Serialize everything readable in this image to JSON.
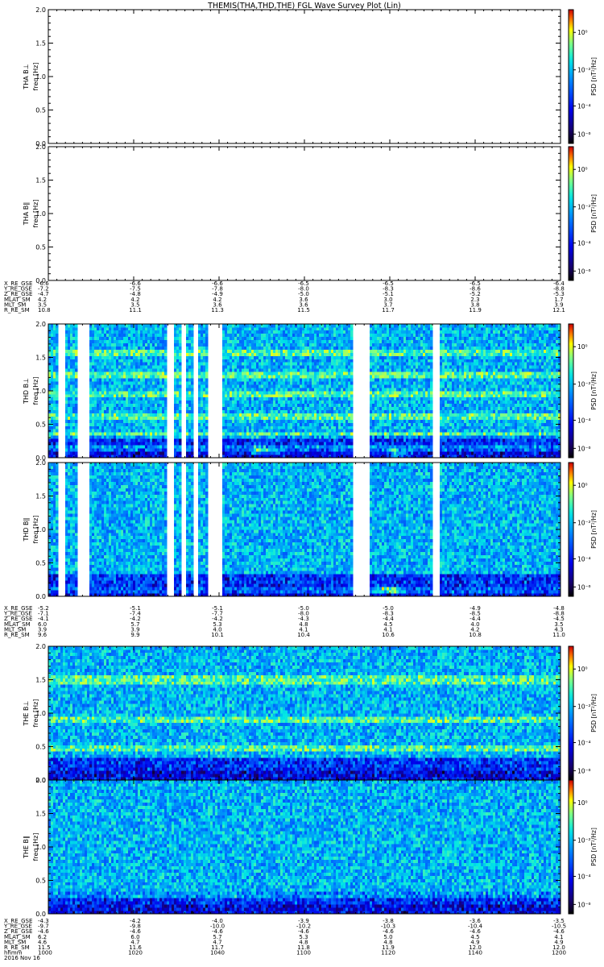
{
  "chart_data": {
    "type": "heatmap",
    "title": "THEMIS(THA,THD,THE) FGL Wave Survey Plot (Lin)",
    "panels": [
      {
        "probe": "tha",
        "ylabel": "THA B⊥",
        "unit": "freq [Hz]",
        "ylim": [
          0,
          2.0
        ],
        "yticks": [
          "0.0",
          "0.5",
          "1.0",
          "1.5",
          "2.0"
        ],
        "colorbar": {
          "label": "PSD [nT²/Hz]",
          "ticks": [
            "10⁰",
            "10⁻²",
            "10⁻⁴",
            "10⁻⁶"
          ]
        },
        "has_data": false
      },
      {
        "probe": "tha",
        "ylabel": "THA B∥",
        "unit": "freq [Hz]",
        "ylim": [
          0,
          2.0
        ],
        "yticks": [
          "0.0",
          "0.5",
          "1.0",
          "1.5",
          "2.0"
        ],
        "colorbar": {
          "label": "PSD [nT²/Hz]",
          "ticks": [
            "10⁰",
            "10⁻²",
            "10⁻⁴",
            "10⁻⁶"
          ]
        },
        "has_data": false
      },
      {
        "probe": "thd",
        "ylabel": "THD B⊥",
        "unit": "freq [Hz]",
        "ylim": [
          0,
          2.0
        ],
        "yticks": [
          "0.0",
          "0.5",
          "1.0",
          "1.5",
          "2.0"
        ],
        "colorbar": {
          "label": "PSD [nT²/Hz]",
          "ticks": [
            "10⁰",
            "10⁻²",
            "10⁻⁴",
            "10⁻⁶"
          ]
        },
        "has_data": true,
        "bands": [
          0.15,
          0.32,
          0.62,
          0.95,
          1.25,
          1.55
        ],
        "hot_spots": [
          {
            "x": 0.42,
            "y": 0.1
          },
          {
            "x": 0.68,
            "y": 0.08
          }
        ],
        "gaps": [
          [
            0.02,
            0.035
          ],
          [
            0.058,
            0.078
          ],
          [
            0.233,
            0.245
          ],
          [
            0.258,
            0.27
          ],
          [
            0.283,
            0.293
          ],
          [
            0.31,
            0.338
          ],
          [
            0.595,
            0.625
          ],
          [
            0.75,
            0.762
          ]
        ]
      },
      {
        "probe": "thd",
        "ylabel": "THD B∥",
        "unit": "freq [Hz]",
        "ylim": [
          0,
          2.0
        ],
        "yticks": [
          "0.0",
          "0.5",
          "1.0",
          "1.5",
          "2.0"
        ],
        "colorbar": {
          "label": "PSD [nT²/Hz]",
          "ticks": [
            "10⁰",
            "10⁻²",
            "10⁻⁴",
            "10⁻⁶"
          ]
        },
        "has_data": true,
        "bands": [
          0.1
        ],
        "hot_spots": [
          {
            "x": 0.66,
            "y": 0.1
          }
        ],
        "gaps": [
          [
            0.02,
            0.035
          ],
          [
            0.058,
            0.078
          ],
          [
            0.233,
            0.245
          ],
          [
            0.258,
            0.27
          ],
          [
            0.283,
            0.293
          ],
          [
            0.31,
            0.338
          ],
          [
            0.595,
            0.625
          ],
          [
            0.75,
            0.762
          ]
        ]
      },
      {
        "probe": "the",
        "ylabel": "THE B⊥",
        "unit": "freq [Hz]",
        "ylim": [
          0,
          2.0
        ],
        "yticks": [
          "0.0",
          "0.5",
          "1.0",
          "1.5",
          "2.0"
        ],
        "colorbar": {
          "label": "PSD [nT²/Hz]",
          "ticks": [
            "10⁰",
            "10⁻²",
            "10⁻⁴",
            "10⁻⁶"
          ]
        },
        "has_data": true,
        "bands": [
          0.48,
          0.9,
          1.5
        ],
        "hot_spots": [],
        "gaps": []
      },
      {
        "probe": "the",
        "ylabel": "THE B∥",
        "unit": "freq [Hz]",
        "ylim": [
          0,
          2.0
        ],
        "yticks": [
          "0.0",
          "0.5",
          "1.0",
          "1.5",
          "2.0"
        ],
        "colorbar": {
          "label": "PSD [nT²/Hz]",
          "ticks": [
            "10⁰",
            "10⁻²",
            "10⁻⁴",
            "10⁻⁶"
          ]
        },
        "has_data": true,
        "bands": [
          0.3
        ],
        "hot_spots": [],
        "gaps": []
      }
    ],
    "ephemeris": [
      {
        "labels": [
          "X_RE_GSE",
          "Y_RE_GSE",
          "Z_RE_GSE",
          "MLAT_SM",
          "MLT_SM",
          "R_RE_SM"
        ],
        "values": [
          [
            "-6.6",
            "-6.6",
            "-6.6",
            "-6.5",
            "-6.5",
            "-6.5",
            "-6.4"
          ],
          [
            "-7.2",
            "-7.5",
            "-7.8",
            "-8.0",
            "-8.3",
            "-8.6",
            "-8.8"
          ],
          [
            "-4.7",
            "-4.8",
            "-4.9",
            "-5.0",
            "-5.1",
            "-5.2",
            "-5.3"
          ],
          [
            "4.2",
            "4.2",
            "4.2",
            "3.6",
            "3.0",
            "2.3",
            "1.7"
          ],
          [
            "3.5",
            "3.5",
            "3.6",
            "3.6",
            "3.7",
            "3.8",
            "3.9"
          ],
          [
            "10.8",
            "11.1",
            "11.3",
            "11.5",
            "11.7",
            "11.9",
            "12.1"
          ]
        ]
      },
      {
        "labels": [
          "X_RE_GSE",
          "Y_RE_GSE",
          "Z_RE_GSE",
          "MLAT_SM",
          "MLT_SM",
          "R_RE_SM"
        ],
        "values": [
          [
            "-5.2",
            "-5.1",
            "-5.1",
            "-5.0",
            "-5.0",
            "-4.9",
            "-4.8"
          ],
          [
            "-7.1",
            "-7.4",
            "-7.7",
            "-8.0",
            "-8.3",
            "-8.5",
            "-8.8"
          ],
          [
            "-4.1",
            "-4.2",
            "-4.2",
            "-4.3",
            "-4.4",
            "-4.4",
            "-4.5"
          ],
          [
            "6.0",
            "5.7",
            "5.3",
            "4.8",
            "4.5",
            "4.0",
            "3.5"
          ],
          [
            "3.9",
            "3.9",
            "4.0",
            "4.1",
            "4.1",
            "4.2",
            "4.3"
          ],
          [
            "9.6",
            "9.9",
            "10.1",
            "10.4",
            "10.6",
            "10.8",
            "11.0"
          ]
        ]
      },
      {
        "labels": [
          "X_RE_GSE",
          "Y_RE_GSE",
          "Z_RE_GSE",
          "MLAT_SM",
          "MLT_SM",
          "R_RE_SM",
          "hhmm",
          "2016 Nov 16"
        ],
        "values": [
          [
            "-4.3",
            "-4.2",
            "-4.0",
            "-3.9",
            "-3.8",
            "-3.6",
            "-3.5"
          ],
          [
            "-9.7",
            "-9.8",
            "-10.0",
            "-10.2",
            "-10.3",
            "-10.4",
            "-10.5"
          ],
          [
            "-4.6",
            "-4.6",
            "-4.6",
            "-4.6",
            "-4.6",
            "-4.6",
            "-4.6"
          ],
          [
            "6.2",
            "6.0",
            "5.7",
            "5.3",
            "5.0",
            "4.5",
            "4.1"
          ],
          [
            "4.6",
            "4.7",
            "4.7",
            "4.8",
            "4.8",
            "4.9",
            "4.9"
          ],
          [
            "11.5",
            "11.6",
            "11.7",
            "11.8",
            "11.9",
            "12.0",
            "12.0"
          ],
          [
            "1000",
            "1020",
            "1040",
            "1100",
            "1120",
            "1140",
            "1200"
          ]
        ]
      }
    ]
  }
}
